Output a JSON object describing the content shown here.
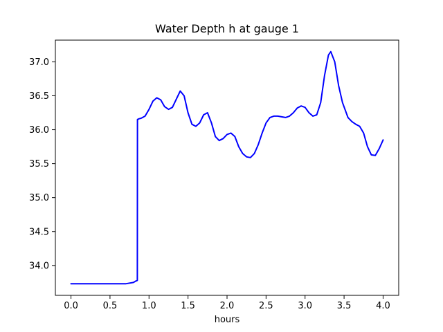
{
  "figure": {
    "background": "#ffffff",
    "axes_edge_color": "#000000",
    "text_color": "#000000"
  },
  "chart_data": {
    "type": "line",
    "title": "Water Depth h at gauge 1",
    "xlabel": "hours",
    "ylabel": "",
    "xlim": [
      -0.2,
      4.2
    ],
    "ylim": [
      33.56,
      37.32
    ],
    "grid": false,
    "legend": "none",
    "line_color": "#0000ff",
    "xtick_values": [
      0.0,
      0.5,
      1.0,
      1.5,
      2.0,
      2.5,
      3.0,
      3.5,
      4.0
    ],
    "xtick_labels": [
      "0.0",
      "0.5",
      "1.0",
      "1.5",
      "2.0",
      "2.5",
      "3.0",
      "3.5",
      "4.0"
    ],
    "ytick_values": [
      34.0,
      34.5,
      35.0,
      35.5,
      36.0,
      36.5,
      37.0
    ],
    "ytick_labels": [
      "34.0",
      "34.5",
      "35.0",
      "35.5",
      "36.0",
      "36.5",
      "37.0"
    ],
    "series": [
      {
        "name": "water-depth-h",
        "x": [
          0.0,
          0.1,
          0.2,
          0.3,
          0.4,
          0.5,
          0.6,
          0.7,
          0.75,
          0.8,
          0.83,
          0.85,
          0.852,
          0.87,
          0.9,
          0.95,
          1.0,
          1.05,
          1.1,
          1.15,
          1.2,
          1.25,
          1.3,
          1.35,
          1.4,
          1.45,
          1.5,
          1.55,
          1.6,
          1.65,
          1.7,
          1.75,
          1.8,
          1.85,
          1.9,
          1.95,
          2.0,
          2.05,
          2.1,
          2.15,
          2.2,
          2.25,
          2.3,
          2.35,
          2.4,
          2.45,
          2.5,
          2.55,
          2.6,
          2.65,
          2.7,
          2.75,
          2.8,
          2.85,
          2.9,
          2.95,
          3.0,
          3.05,
          3.1,
          3.15,
          3.2,
          3.25,
          3.3,
          3.33,
          3.38,
          3.43,
          3.48,
          3.55,
          3.6,
          3.65,
          3.7,
          3.75,
          3.8,
          3.85,
          3.9,
          3.95,
          4.0
        ],
        "y": [
          33.73,
          33.73,
          33.73,
          33.73,
          33.73,
          33.73,
          33.73,
          33.73,
          33.74,
          33.75,
          33.77,
          33.78,
          36.15,
          36.16,
          36.17,
          36.2,
          36.3,
          36.42,
          36.47,
          36.44,
          36.34,
          36.3,
          36.33,
          36.45,
          36.57,
          36.5,
          36.25,
          36.08,
          36.05,
          36.1,
          36.22,
          36.25,
          36.1,
          35.9,
          35.84,
          35.87,
          35.93,
          35.95,
          35.9,
          35.75,
          35.65,
          35.6,
          35.59,
          35.65,
          35.78,
          35.95,
          36.1,
          36.18,
          36.2,
          36.2,
          36.19,
          36.18,
          36.2,
          36.25,
          36.32,
          36.35,
          36.33,
          36.25,
          36.2,
          36.22,
          36.4,
          36.8,
          37.1,
          37.15,
          37.0,
          36.65,
          36.4,
          36.18,
          36.12,
          36.08,
          36.05,
          35.95,
          35.75,
          35.63,
          35.62,
          35.72,
          35.85
        ]
      }
    ]
  }
}
